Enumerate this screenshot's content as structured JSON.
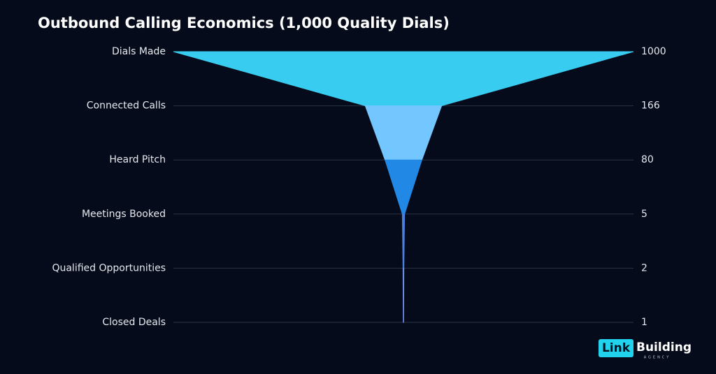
{
  "chart_data": {
    "type": "funnel",
    "title": "Outbound Calling Economics (1,000 Quality Dials)",
    "categories": [
      "Dials Made",
      "Connected Calls",
      "Heard Pitch",
      "Meetings Booked",
      "Qualified Opportunities",
      "Closed Deals"
    ],
    "values": [
      1000,
      166,
      80,
      5,
      2,
      1
    ],
    "colors": [
      "#38cdf0",
      "#74c6ff",
      "#2288e6",
      "#4a7fe0",
      "#6a8ce8"
    ],
    "grid": true
  },
  "logo": {
    "highlight": "Link",
    "text": "Building",
    "subtext": "AGENCY"
  }
}
